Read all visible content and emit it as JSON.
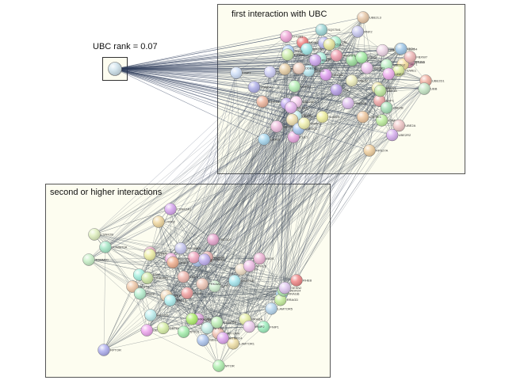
{
  "labels": {
    "ubc_rank": "UBC rank = 0.07",
    "first_group": "first interaction with UBC",
    "second_group": "second or higher interactions"
  },
  "colors": {
    "box_fill": "#fdfdf0",
    "box_stroke": "#555555",
    "edge": "#4a5560",
    "edge_dark": "#2c3a5a"
  },
  "nodes": {
    "first_group": [
      {
        "label": "UBE2L3",
        "color": "#e8c8a8"
      },
      {
        "label": "UBE2L6",
        "color": "#e8c0b0"
      },
      {
        "label": "UBE2D1",
        "color": "#f0b0a0"
      },
      {
        "label": "USP7",
        "color": "#d0e0f8"
      },
      {
        "label": "UBA52",
        "color": "#a8d8f0"
      },
      {
        "label": "RPS27A",
        "color": "#f0d0a0"
      },
      {
        "label": "UBB",
        "color": "#c8e8c8"
      },
      {
        "label": "SUMO1",
        "color": "#f0f0a0"
      },
      {
        "label": "UBA1",
        "color": "#b8b8f0"
      },
      {
        "label": "CUL1",
        "color": "#e8a8e0"
      },
      {
        "label": "CBL",
        "color": "#a8f0d0"
      },
      {
        "label": "MDM2",
        "color": "#f08080"
      },
      {
        "label": "TRAF6",
        "color": "#a0e0a0"
      },
      {
        "label": "NEDD8",
        "color": "#f0c0e0"
      },
      {
        "label": "UBE2N",
        "color": "#e0a0f0"
      },
      {
        "label": "BRCA1",
        "color": "#a0e8e8"
      },
      {
        "label": "STUB1",
        "color": "#f0a0c0"
      },
      {
        "label": "PSMD14",
        "color": "#c0f0a0"
      },
      {
        "label": "SKP1",
        "color": "#f8e0a0"
      },
      {
        "label": "RBX1",
        "color": "#b0d0f8"
      },
      {
        "label": "FBXW7",
        "color": "#f0b8b8"
      },
      {
        "label": "UBE2K",
        "color": "#d8d8a0"
      },
      {
        "label": "ISG15",
        "color": "#a8f0a8"
      },
      {
        "label": "UBE2E1",
        "color": "#f0c8a0"
      },
      {
        "label": "TP53",
        "color": "#c0a8f0"
      },
      {
        "label": "HUWE1",
        "color": "#e0f0a0"
      },
      {
        "label": "SQSTM1",
        "color": "#a0d8d8"
      },
      {
        "label": "BAP1",
        "color": "#f0a8a8"
      },
      {
        "label": "UBE2T",
        "color": "#d0d0f8"
      },
      {
        "label": "UBE2W",
        "color": "#f8d0f0"
      },
      {
        "label": "UBE2Z",
        "color": "#f0f0c0"
      },
      {
        "label": "UBE2S",
        "color": "#c8f0f0"
      },
      {
        "label": "OTUB1",
        "color": "#f0a8d8"
      },
      {
        "label": "USP14",
        "color": "#b8f0b8"
      },
      {
        "label": "UCHL5",
        "color": "#e8b8f0"
      },
      {
        "label": "ZNRF2",
        "color": "#f0e0b0"
      },
      {
        "label": "UBE2Q1",
        "color": "#a8c8f0"
      },
      {
        "label": "UBE2J1",
        "color": "#f8c0a8"
      },
      {
        "label": "UBE2G2",
        "color": "#c0f0c8"
      },
      {
        "label": "UBE2H",
        "color": "#f0d8e8"
      },
      {
        "label": "PSMB8",
        "color": "#d0f0b0"
      },
      {
        "label": "PSMC4",
        "color": "#b0b0e8"
      },
      {
        "label": "UBE2C",
        "color": "#f0b0f0"
      },
      {
        "label": "UBQLN1",
        "color": "#b0f0e0"
      },
      {
        "label": "PRKN",
        "color": "#e8d0a8"
      },
      {
        "label": "UHRF1",
        "color": "#f0f0b0"
      },
      {
        "label": "RNF2",
        "color": "#c8c8f0"
      },
      {
        "label": "UBE2A",
        "color": "#f0c8c8"
      },
      {
        "label": "UBE2B",
        "color": "#a8e0b8"
      },
      {
        "label": "RNF168",
        "color": "#e0c0f0"
      },
      {
        "label": "UBE2V1",
        "color": "#f0e8a8"
      },
      {
        "label": "UBE2I",
        "color": "#b8e8f0"
      },
      {
        "label": "CDC34",
        "color": "#f0b8a0"
      },
      {
        "label": "UBE2R2",
        "color": "#d8b0f0"
      },
      {
        "label": "NEDD4",
        "color": "#f0f0d0"
      },
      {
        "label": "ITCH",
        "color": "#a0c8e8"
      },
      {
        "label": "SMURF1",
        "color": "#f0a0b0"
      },
      {
        "label": "UBE3A",
        "color": "#c0e8a0"
      },
      {
        "label": "VHL",
        "color": "#b8a0e8"
      },
      {
        "label": "DDB1",
        "color": "#f0d0c0"
      },
      {
        "label": "CUL3",
        "color": "#e8e8a0"
      },
      {
        "label": "KEAP1",
        "color": "#d0a8f0"
      },
      {
        "label": "TRIM21",
        "color": "#f0c8f0"
      }
    ],
    "second_group": [
      {
        "label": "CSNK2B",
        "color": "#e0f0c0"
      },
      {
        "label": "TOMM20",
        "color": "#c8f0c8"
      },
      {
        "label": "TOMM70A",
        "color": "#a8e8c8"
      },
      {
        "label": "CSNK2A1",
        "color": "#d8a8f0"
      },
      {
        "label": "LRRK2",
        "color": "#f0d8a0"
      },
      {
        "label": "RHEB",
        "color": "#f08888"
      },
      {
        "label": "MTOR",
        "color": "#b0f0b0"
      },
      {
        "label": "RPTOR",
        "color": "#b0b0f0"
      },
      {
        "label": "MLST8",
        "color": "#f0c8a8"
      },
      {
        "label": "AKT1S1",
        "color": "#c0f0f0"
      },
      {
        "label": "DEPTOR",
        "color": "#f0a8f0"
      },
      {
        "label": "RRAGA",
        "color": "#e8f0a8"
      },
      {
        "label": "RRAGB",
        "color": "#a8d8f0"
      },
      {
        "label": "RRAGC",
        "color": "#f0b0c8"
      },
      {
        "label": "RRAGD",
        "color": "#c8f0a0"
      },
      {
        "label": "LAMTOR1",
        "color": "#f0e0a8"
      },
      {
        "label": "LAMTOR2",
        "color": "#a8f0e0"
      },
      {
        "label": "LAMTOR3",
        "color": "#e0a8e0"
      },
      {
        "label": "LAMTOR4",
        "color": "#f0c0b0"
      },
      {
        "label": "LAMTOR5",
        "color": "#b8d8f0"
      },
      {
        "label": "SLC38A9",
        "color": "#c8c8f0"
      },
      {
        "label": "FLCN",
        "color": "#f0a0a0"
      },
      {
        "label": "FNIP1",
        "color": "#a0f0c0"
      },
      {
        "label": "FNIP2",
        "color": "#f0d0f0"
      },
      {
        "label": "SZT2",
        "color": "#d0f0d0"
      },
      {
        "label": "MIOS",
        "color": "#f0b8d8"
      },
      {
        "label": "WDR24",
        "color": "#b0e8b0"
      },
      {
        "label": "WDR59",
        "color": "#e8b0b0"
      },
      {
        "label": "SEH1L",
        "color": "#b0c8f0"
      },
      {
        "label": "SEC13",
        "color": "#f0e0c8"
      },
      {
        "label": "NPRL2",
        "color": "#c8f0e8"
      },
      {
        "label": "NPRL3",
        "color": "#f0c0e8"
      },
      {
        "label": "DEPDC5",
        "color": "#d8f0a8"
      },
      {
        "label": "KPTN",
        "color": "#a8c0e8"
      },
      {
        "label": "ITFG2",
        "color": "#f0a8c0"
      },
      {
        "label": "C12orf66",
        "color": "#c0f0b8"
      },
      {
        "label": "SESN2",
        "color": "#e0c8f0"
      },
      {
        "label": "CASTOR1",
        "color": "#f0f0a8"
      },
      {
        "label": "SAMTOR",
        "color": "#a8e8f0"
      },
      {
        "label": "TSC1",
        "color": "#f0b8b0"
      },
      {
        "label": "TSC2",
        "color": "#b8f0d0"
      },
      {
        "label": "TBC1D7",
        "color": "#e8a8d0"
      },
      {
        "label": "ULK1",
        "color": "#f0d8b8"
      },
      {
        "label": "ATG13",
        "color": "#b0f0f0"
      },
      {
        "label": "RB1CC1",
        "color": "#f0b0e0"
      },
      {
        "label": "EIF4EBP1",
        "color": "#d0e8a8"
      },
      {
        "label": "RPS6KB1",
        "color": "#c0b0f0"
      },
      {
        "label": "PRKAA1",
        "color": "#f0c8b8"
      },
      {
        "label": "STK11",
        "color": "#a8f0b0"
      },
      {
        "label": "MTMR14",
        "color": "#e0a8f0"
      },
      {
        "label": "RRAGE",
        "color": "#b0f070"
      },
      {
        "label": "DNM2",
        "color": "#f0b090"
      }
    ]
  }
}
